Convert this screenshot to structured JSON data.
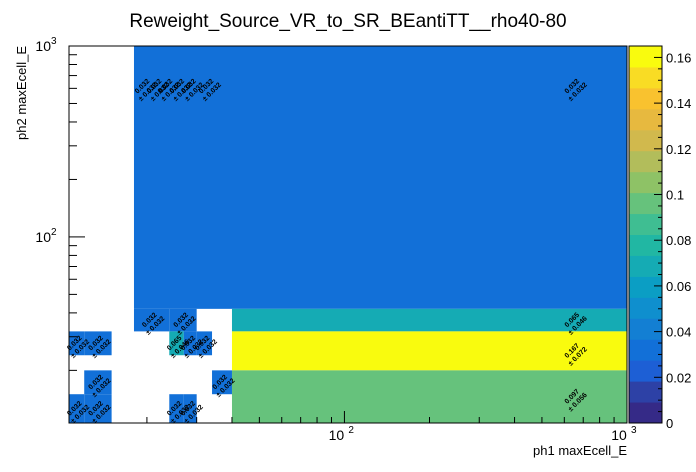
{
  "chart_data": {
    "type": "heatmap",
    "title": "Reweight_Source_VR_to_SR_BEantiTT__rho40-80",
    "xlabel": "ph1 maxEcell_E",
    "ylabel": "ph2 maxEcell_E",
    "x_scale": "log",
    "y_scale": "log",
    "xlim": [
      10.6,
      1000
    ],
    "ylim": [
      10.6,
      1000
    ],
    "zlim": [
      0,
      0.165
    ],
    "x_ticks": [
      {
        "v": 100,
        "base": "10",
        "exp": "2"
      },
      {
        "v": 1000,
        "base": "10",
        "exp": "3"
      }
    ],
    "y_ticks": [
      {
        "v": 100,
        "base": "10",
        "exp": "2"
      },
      {
        "v": 1000,
        "base": "10",
        "exp": "3"
      }
    ],
    "z_ticks": [
      "0",
      "0.02",
      "0.04",
      "0.06",
      "0.08",
      "0.1",
      "0.12",
      "0.14",
      "0.16"
    ],
    "cells": [
      {
        "x": [
          18,
          1000
        ],
        "y": [
          42,
          1000
        ],
        "value": 0.032,
        "text": [
          "0.032",
          "± 0.032"
        ]
      },
      {
        "x": [
          40,
          1000
        ],
        "y": [
          32,
          42
        ],
        "value": 0.065,
        "text": [
          "0.065",
          "± 0.046"
        ]
      },
      {
        "x": [
          40,
          1000
        ],
        "y": [
          20,
          32
        ],
        "value": 0.167,
        "text": [
          "0.167",
          "± 0.072"
        ]
      },
      {
        "x": [
          40,
          1000
        ],
        "y": [
          10.6,
          20
        ],
        "value": 0.097,
        "text": [
          "0.097",
          "± 0.056"
        ]
      },
      {
        "x": [
          18,
          24
        ],
        "y": [
          32,
          42
        ],
        "value": 0.032,
        "text": [
          "0.032",
          "± 0.032"
        ]
      },
      {
        "x": [
          24,
          30
        ],
        "y": [
          32,
          42
        ],
        "value": 0.032,
        "text": [
          "0.032",
          "± 0.032"
        ]
      },
      {
        "x": [
          24,
          27
        ],
        "y": [
          24,
          32
        ],
        "value": 0.065,
        "text": [
          "0.065",
          "± 0.046"
        ]
      },
      {
        "x": [
          27,
          30
        ],
        "y": [
          24,
          32
        ],
        "value": 0.032,
        "text": [
          "0.032",
          "± 0.032"
        ]
      },
      {
        "x": [
          30,
          34
        ],
        "y": [
          24,
          32
        ],
        "value": 0.032,
        "text": [
          "0.032",
          "± 0.032"
        ]
      },
      {
        "x": [
          34,
          40
        ],
        "y": [
          15,
          20
        ],
        "value": 0.032,
        "text": [
          "0.032",
          "± 0.032"
        ]
      },
      {
        "x": [
          10.6,
          12
        ],
        "y": [
          24,
          32
        ],
        "value": 0.032,
        "text": [
          "0.032",
          "± 0.032"
        ]
      },
      {
        "x": [
          12,
          15
        ],
        "y": [
          24,
          32
        ],
        "value": 0.032,
        "text": [
          "0.032",
          "± 0.032"
        ]
      },
      {
        "x": [
          12,
          15
        ],
        "y": [
          15,
          20
        ],
        "value": 0.032,
        "text": [
          "0.032",
          "± 0.032"
        ]
      },
      {
        "x": [
          10.6,
          12
        ],
        "y": [
          10.6,
          15
        ],
        "value": 0.032,
        "text": [
          "0.032",
          "± 0.032"
        ]
      },
      {
        "x": [
          12,
          15
        ],
        "y": [
          10.6,
          15
        ],
        "value": 0.032,
        "text": [
          "0.032",
          "± 0.032"
        ]
      },
      {
        "x": [
          24,
          27
        ],
        "y": [
          10.6,
          15
        ],
        "value": 0.032,
        "text": [
          "0.032",
          "± 0.032"
        ]
      },
      {
        "x": [
          27,
          30
        ],
        "y": [
          10.6,
          15
        ],
        "value": 0.032,
        "text": [
          "0.032",
          "± 0.032"
        ]
      }
    ],
    "extra_labels": [
      {
        "x": 19.6,
        "y": 600,
        "text": [
          "0.032",
          "± 0.032"
        ]
      },
      {
        "x": 21.6,
        "y": 600,
        "text": [
          "0.032",
          "± 0.032"
        ]
      },
      {
        "x": 23.6,
        "y": 600,
        "text": [
          "0.032",
          "± 0.032"
        ]
      },
      {
        "x": 26,
        "y": 600,
        "text": [
          "0.032",
          "± 0.032"
        ]
      },
      {
        "x": 28.6,
        "y": 600,
        "text": [
          "0.032",
          "± 0.032"
        ]
      },
      {
        "x": 33,
        "y": 600,
        "text": [
          "0.032",
          "± 0.032"
        ]
      },
      {
        "x": 650,
        "y": 600,
        "text": [
          "0.032",
          "± 0.032"
        ]
      }
    ],
    "palette": [
      "#352a87",
      "#2d41a6",
      "#1d5fd5",
      "#1270d8",
      "#137fd3",
      "#0f8fce",
      "#0b9ec4",
      "#15abb4",
      "#21b7a3",
      "#3fbe92",
      "#66c27c",
      "#8ec266",
      "#b2bd5b",
      "#d1b94d",
      "#e7b93f",
      "#f9c22f",
      "#f9dc24",
      "#f9fb0e"
    ]
  }
}
